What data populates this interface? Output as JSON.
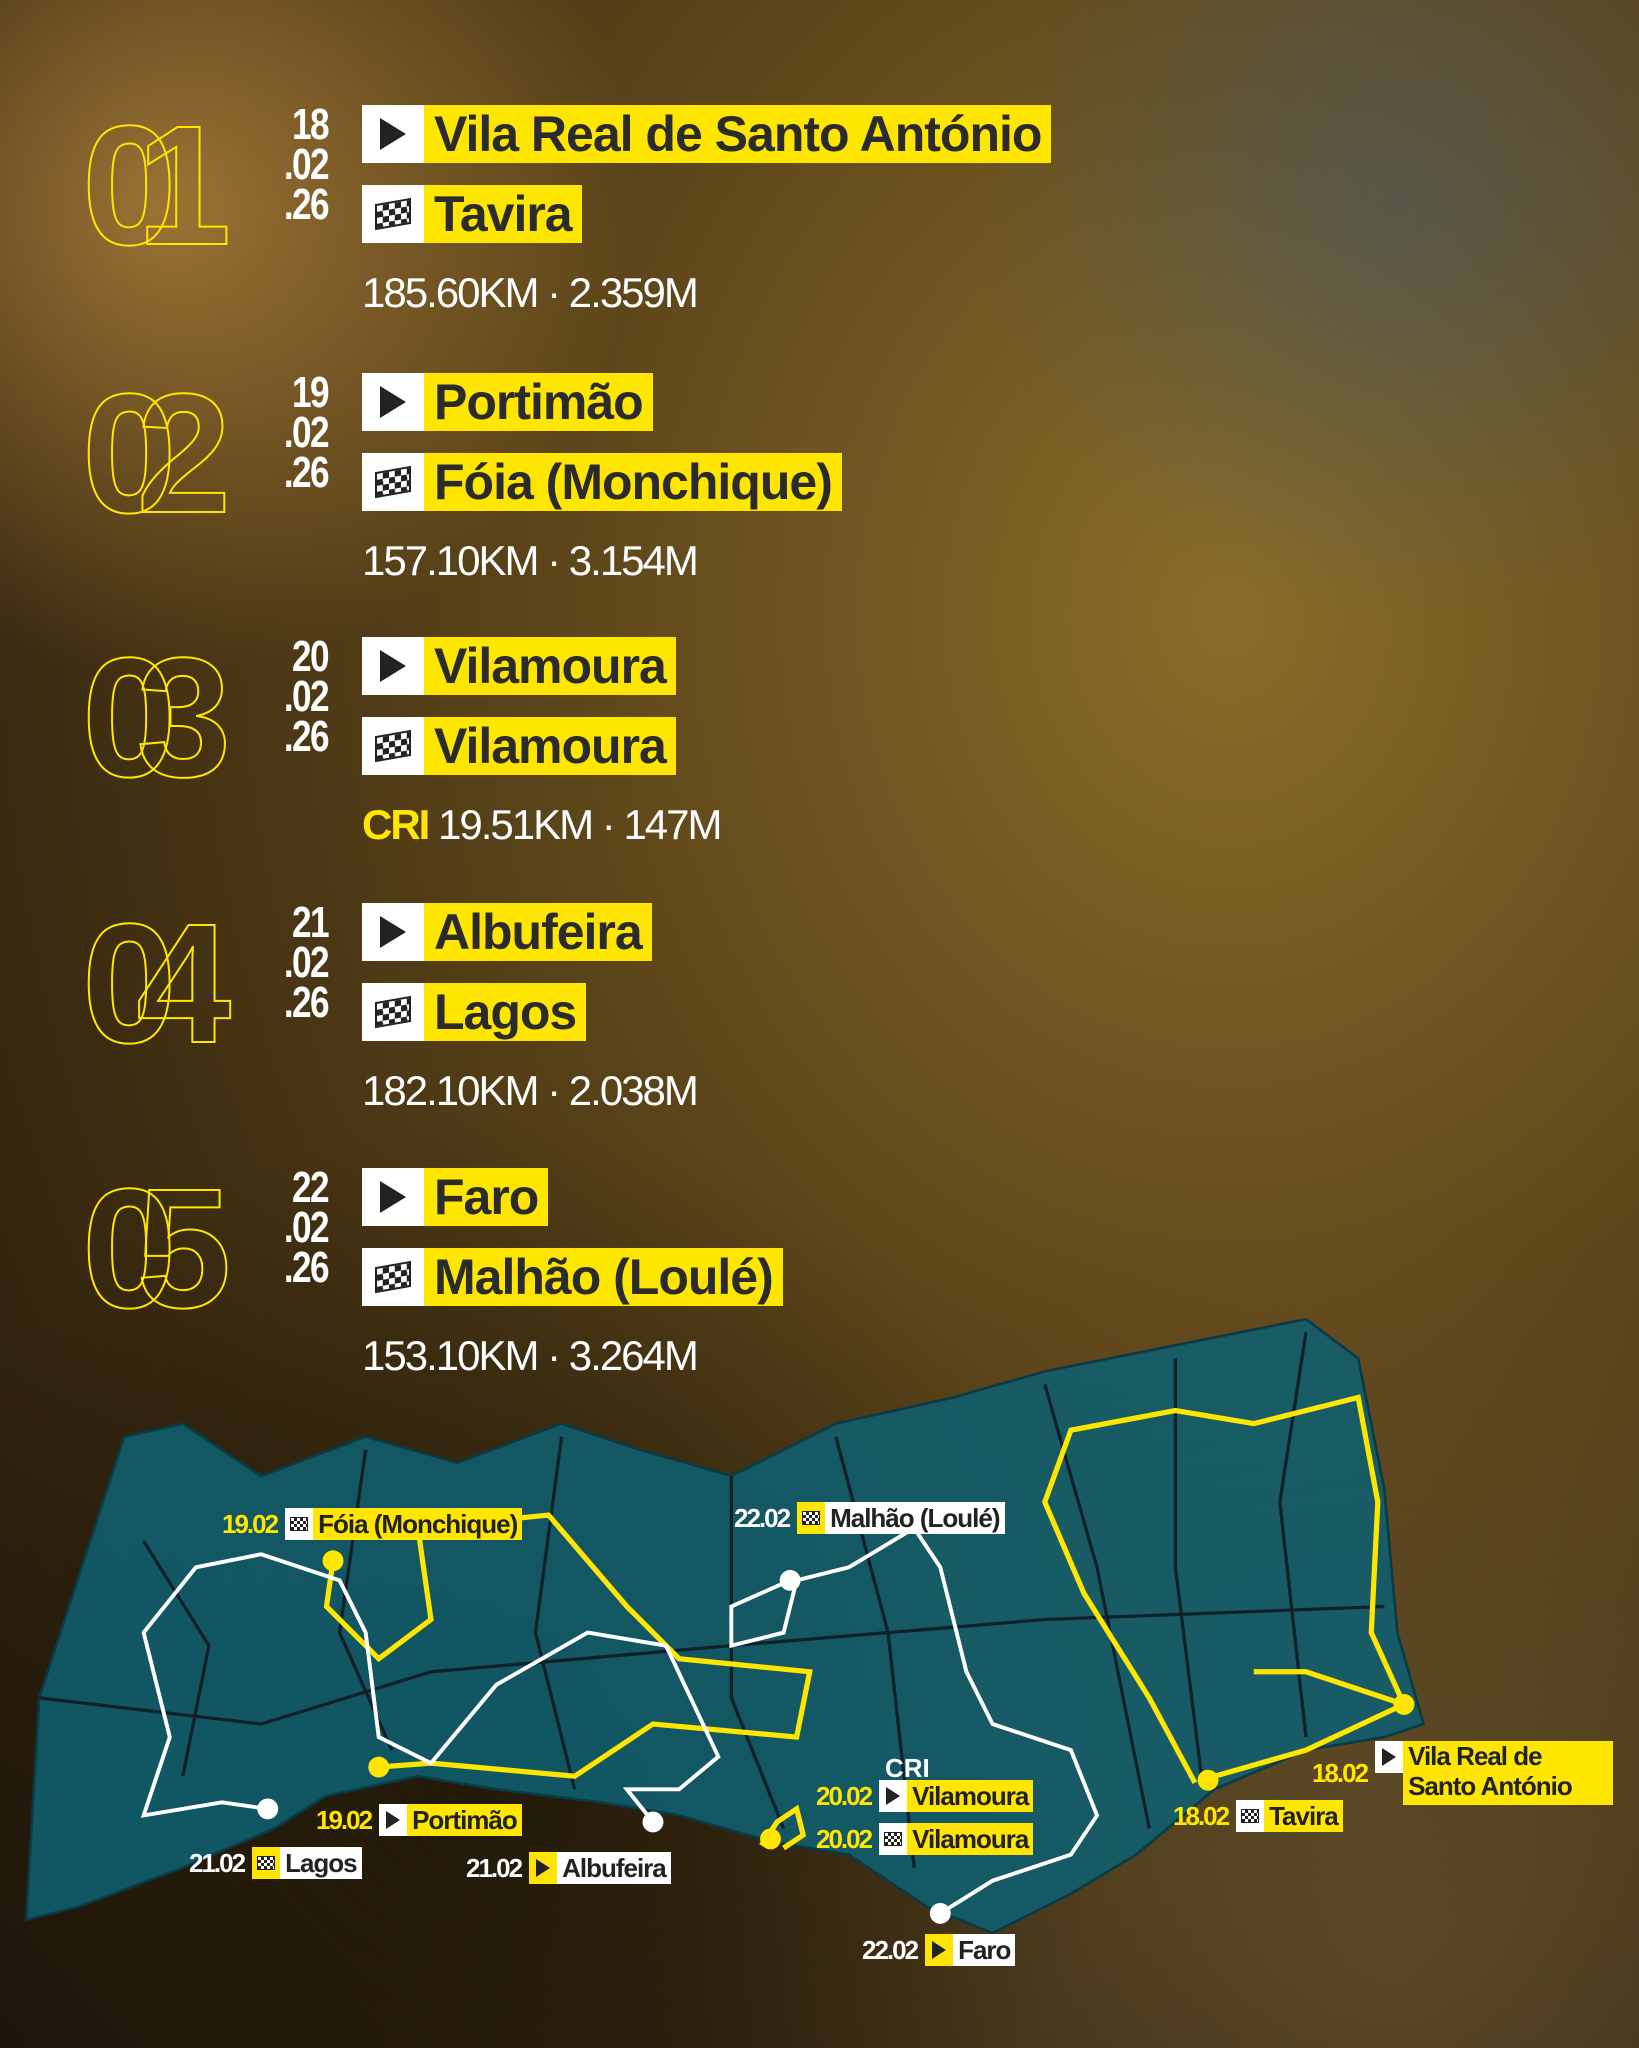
{
  "stages": [
    {
      "number": "01",
      "date": [
        "18",
        ".02",
        ".26"
      ],
      "start": "Vila Real de Santo António",
      "finish": "Tavira",
      "prefix": "",
      "stats": "185.60KM · 2.359M"
    },
    {
      "number": "02",
      "date": [
        "19",
        ".02",
        ".26"
      ],
      "start": "Portimão",
      "finish": "Fóia (Monchique)",
      "prefix": "",
      "stats": "157.10KM · 3.154M"
    },
    {
      "number": "03",
      "date": [
        "20",
        ".02",
        ".26"
      ],
      "start": "Vilamoura",
      "finish": "Vilamoura",
      "prefix": "CRI",
      "stats": "19.51KM · 147M"
    },
    {
      "number": "04",
      "date": [
        "21",
        ".02",
        ".26"
      ],
      "start": "Albufeira",
      "finish": "Lagos",
      "prefix": "",
      "stats": "182.10KM · 2.038M"
    },
    {
      "number": "05",
      "date": [
        "22",
        ".02",
        ".26"
      ],
      "start": "Faro",
      "finish": "Malhão (Loulé)",
      "prefix": "",
      "stats": "153.10KM · 3.264M"
    }
  ],
  "map": {
    "colors": {
      "land": "#0f5f70",
      "yellow_route": "#ffe600",
      "white_route": "#ffffff"
    },
    "cri_label": "CRI",
    "labels": [
      {
        "date": "19.02",
        "icon": "finish-flag",
        "text": "Fóia (Monchique)"
      },
      {
        "date": "22.02",
        "icon": "finish-flag",
        "text": "Malhão (Loulé)"
      },
      {
        "date": "18.02",
        "icon": "start-play",
        "text": "Vila Real de Santo António"
      },
      {
        "date": "18.02",
        "icon": "finish-flag",
        "text": "Tavira"
      },
      {
        "date": "20.02",
        "icon": "start-play",
        "text": "Vilamoura"
      },
      {
        "date": "20.02",
        "icon": "finish-flag",
        "text": "Vilamoura"
      },
      {
        "date": "19.02",
        "icon": "start-play",
        "text": "Portimão"
      },
      {
        "date": "21.02",
        "icon": "finish-flag",
        "text": "Lagos"
      },
      {
        "date": "21.02",
        "icon": "start-play",
        "text": "Albufeira"
      },
      {
        "date": "22.02",
        "icon": "start-play",
        "text": "Faro"
      }
    ]
  },
  "colors": {
    "accent": "#ffe600",
    "text_dark": "#2b2b2b"
  }
}
